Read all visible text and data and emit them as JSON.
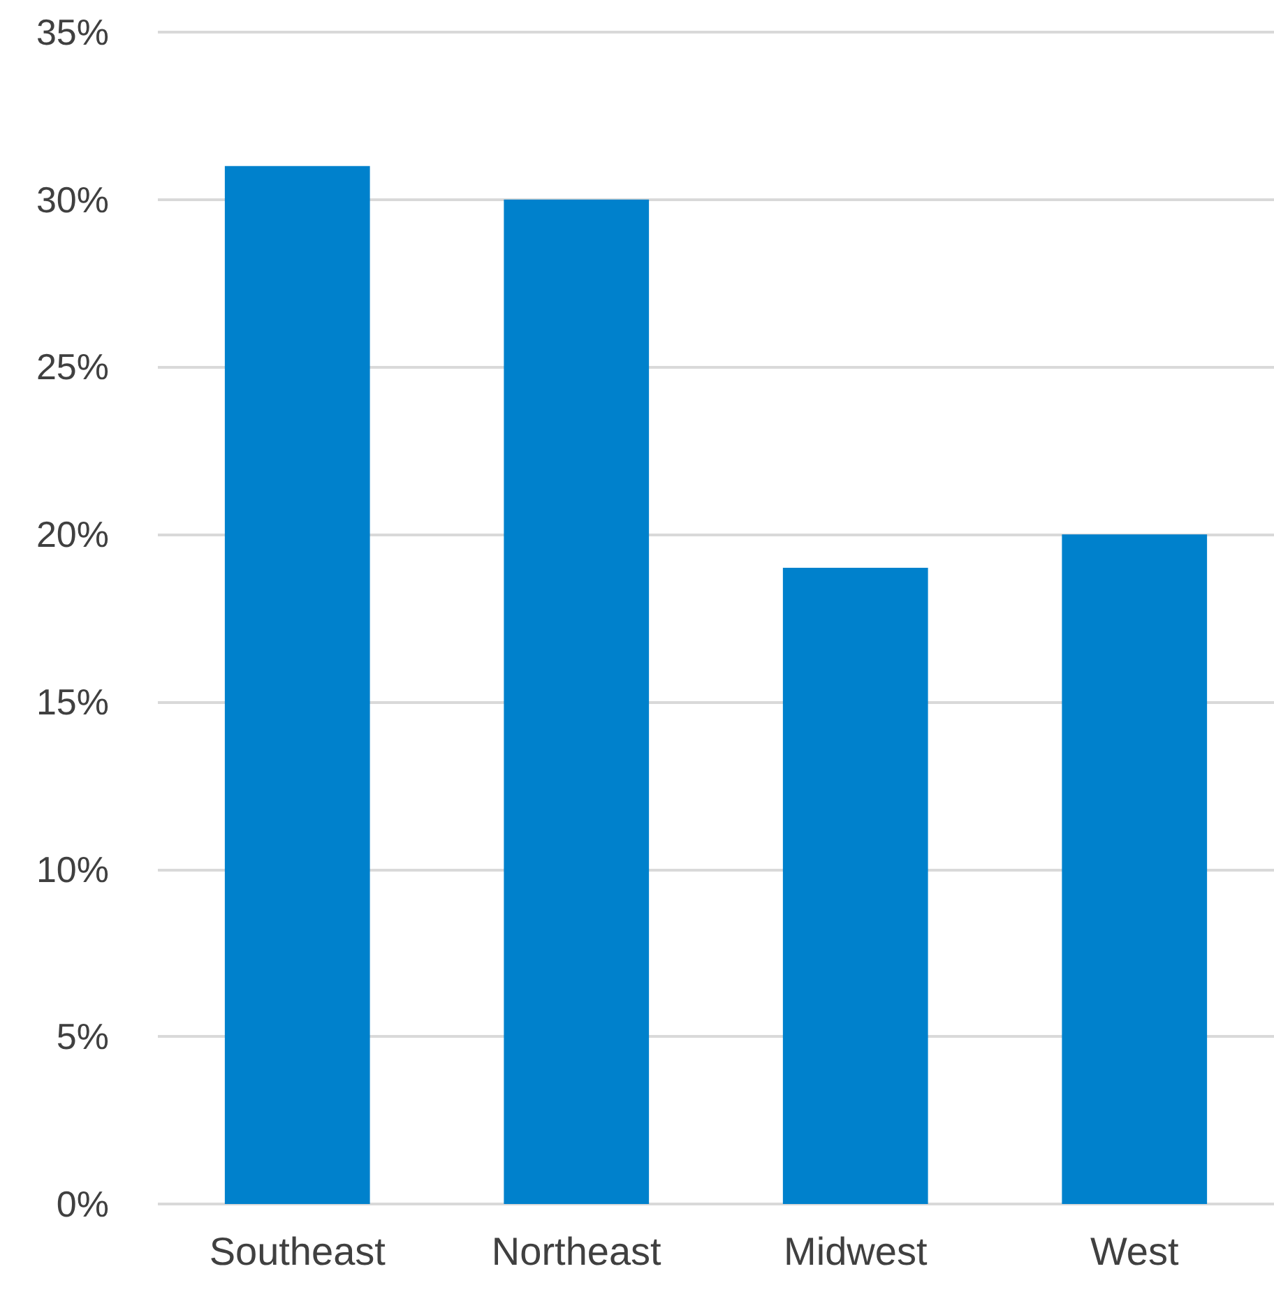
{
  "chart_data": {
    "type": "bar",
    "categories": [
      "Southeast",
      "Northeast",
      "Midwest",
      "West"
    ],
    "values": [
      31,
      30,
      19,
      20
    ],
    "color": "#0081cc",
    "ylim": [
      0,
      35
    ],
    "yticks": [
      {
        "value": 0,
        "label": "0%"
      },
      {
        "value": 5,
        "label": "5%"
      },
      {
        "value": 10,
        "label": "10%"
      },
      {
        "value": 15,
        "label": "15%"
      },
      {
        "value": 20,
        "label": "20%"
      },
      {
        "value": 25,
        "label": "25%"
      },
      {
        "value": 30,
        "label": "30%"
      },
      {
        "value": 35,
        "label": "35%"
      }
    ],
    "grid": true
  }
}
